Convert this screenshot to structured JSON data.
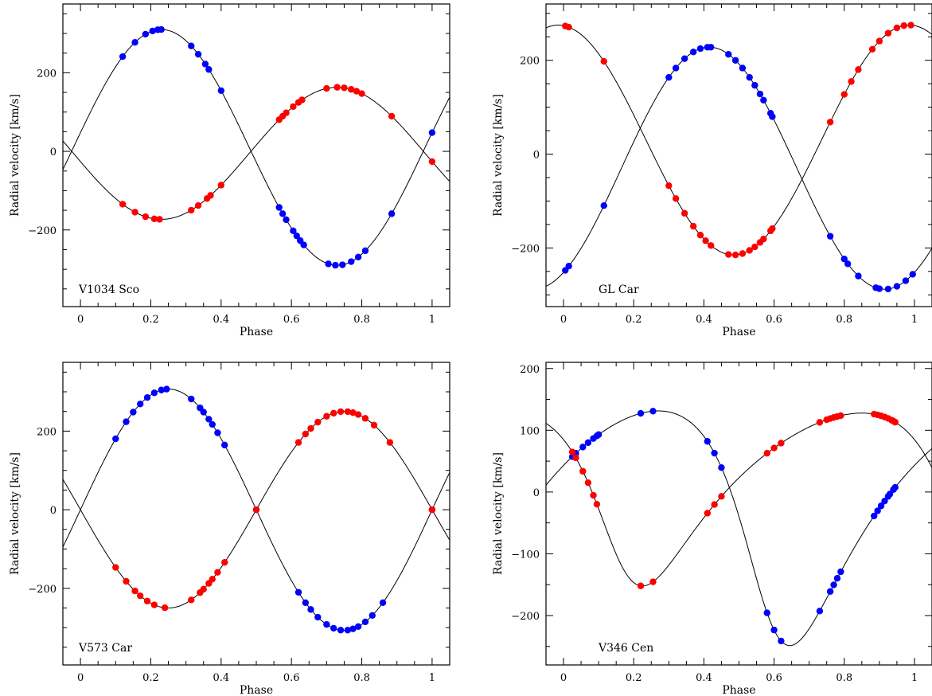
{
  "chart_data": [
    {
      "type": "scatter",
      "title": "V1034 Sco",
      "xlabel": "Phase",
      "ylabel": "Radial velocity [km/s]",
      "xlim": [
        -0.05,
        1.05
      ],
      "ylim": [
        -395,
        375
      ],
      "xticks": [
        "0",
        "0.2",
        "0.4",
        "0.6",
        "0.8",
        "1"
      ],
      "yticks": [
        "−200",
        "0",
        "200"
      ],
      "ytick_values": [
        -200,
        0,
        200
      ],
      "series": [
        {
          "color": "#0000ff",
          "model": {
            "gamma": 10,
            "K": 300,
            "e": 0,
            "omega": 0,
            "peak_phase": 0.23
          },
          "phases": [
            0.12,
            0.155,
            0.185,
            0.205,
            0.22,
            0.23,
            0.315,
            0.335,
            0.355,
            0.365,
            0.4,
            0.565,
            0.575,
            0.585,
            0.605,
            0.615,
            0.625,
            0.635,
            0.705,
            0.725,
            0.745,
            0.77,
            0.79,
            0.81,
            0.885,
            1.0
          ]
        },
        {
          "color": "#ff0000",
          "model": {
            "gamma": -5,
            "K": 168,
            "e": 0,
            "omega": 0,
            "peak_phase": 0.73
          },
          "phases": [
            0.12,
            0.155,
            0.185,
            0.21,
            0.225,
            0.315,
            0.335,
            0.36,
            0.37,
            0.4,
            0.565,
            0.575,
            0.585,
            0.605,
            0.62,
            0.63,
            0.7,
            0.73,
            0.75,
            0.77,
            0.785,
            0.8,
            0.885,
            1.0
          ]
        }
      ]
    },
    {
      "type": "scatter",
      "title": "GL Car",
      "xlabel": "Phase",
      "ylabel": "Radial velocity [km/s]",
      "xlim": [
        -0.05,
        1.05
      ],
      "ylim": [
        -325,
        320
      ],
      "xticks": [
        "0",
        "0.2",
        "0.4",
        "0.6",
        "0.8",
        "1"
      ],
      "yticks": [
        "−200",
        "0",
        "200"
      ],
      "ytick_values": [
        -200,
        0,
        200
      ],
      "series": [
        {
          "color": "#0000ff",
          "model": {
            "gamma": -30,
            "K": 258,
            "e": 0,
            "omega": 0,
            "peak_phase": 0.415
          },
          "phases": [
            0.005,
            0.015,
            0.115,
            0.3,
            0.32,
            0.345,
            0.37,
            0.39,
            0.41,
            0.42,
            0.47,
            0.49,
            0.51,
            0.53,
            0.545,
            0.56,
            0.57,
            0.59,
            0.595,
            0.76,
            0.8,
            0.81,
            0.84,
            0.89,
            0.9,
            0.925,
            0.95,
            0.975,
            0.995
          ]
        },
        {
          "color": "#ff0000",
          "model": {
            "gamma": 30,
            "K": 245,
            "e": 0,
            "omega": 0,
            "peak_phase": 0.985
          },
          "phases": [
            0.005,
            0.015,
            0.115,
            0.3,
            0.32,
            0.345,
            0.37,
            0.39,
            0.405,
            0.42,
            0.47,
            0.49,
            0.51,
            0.53,
            0.545,
            0.56,
            0.57,
            0.59,
            0.595,
            0.76,
            0.8,
            0.82,
            0.84,
            0.88,
            0.9,
            0.925,
            0.95,
            0.97,
            0.99
          ]
        }
      ]
    },
    {
      "type": "scatter",
      "title": "V573 Car",
      "xlabel": "Phase",
      "ylabel": "Radial velocity [km/s]",
      "xlim": [
        -0.05,
        1.05
      ],
      "ylim": [
        -395,
        375
      ],
      "xticks": [
        "0",
        "0.2",
        "0.4",
        "0.6",
        "0.8",
        "1"
      ],
      "yticks": [
        "−200",
        "0",
        "200"
      ],
      "ytick_values": [
        -200,
        0,
        200
      ],
      "series": [
        {
          "color": "#0000ff",
          "model": {
            "gamma": 0,
            "K": 307,
            "e": 0,
            "omega": 0,
            "peak_phase": 0.25
          },
          "phases": [
            0.1,
            0.13,
            0.15,
            0.17,
            0.19,
            0.21,
            0.23,
            0.245,
            0.315,
            0.34,
            0.35,
            0.365,
            0.375,
            0.39,
            0.41,
            0.5,
            0.62,
            0.64,
            0.655,
            0.675,
            0.7,
            0.72,
            0.74,
            0.76,
            0.775,
            0.79,
            0.81,
            0.83,
            0.86,
            1.0
          ]
        },
        {
          "color": "#ff0000",
          "model": {
            "gamma": 0,
            "K": 250,
            "e": 0,
            "omega": 0,
            "peak_phase": 0.75
          },
          "phases": [
            0.1,
            0.13,
            0.155,
            0.17,
            0.19,
            0.21,
            0.24,
            0.315,
            0.34,
            0.35,
            0.365,
            0.375,
            0.39,
            0.41,
            0.5,
            0.62,
            0.64,
            0.655,
            0.675,
            0.7,
            0.72,
            0.74,
            0.76,
            0.775,
            0.79,
            0.81,
            0.835,
            0.88,
            1.0
          ]
        }
      ]
    },
    {
      "type": "scatter",
      "title": "V346 Cen",
      "xlabel": "Phase",
      "ylabel": "Radial velocity [km/s]",
      "xlim": [
        -0.05,
        1.05
      ],
      "ylim": [
        -280,
        210
      ],
      "xticks": [
        "0",
        "0.2",
        "0.4",
        "0.6",
        "0.8",
        "1"
      ],
      "yticks": [
        "−200",
        "−100",
        "0",
        "100",
        "200"
      ],
      "ytick_values": [
        -200,
        -100,
        0,
        100,
        200
      ],
      "series": [
        {
          "color": "#0000ff",
          "model": {
            "gamma": -15,
            "K": 190,
            "e": 0.3,
            "omega": 140,
            "peak_phase": 0.27
          },
          "phases": [
            0.025,
            0.035,
            0.055,
            0.07,
            0.085,
            0.095,
            0.1,
            0.22,
            0.255,
            0.41,
            0.43,
            0.45,
            0.58,
            0.6,
            0.62,
            0.73,
            0.76,
            0.77,
            0.78,
            0.79,
            0.885,
            0.895,
            0.905,
            0.915,
            0.925,
            0.93,
            0.94,
            0.945
          ]
        },
        {
          "color": "#ff0000",
          "model": {
            "gamma": 20,
            "K": 140,
            "e": 0.3,
            "omega": 140,
            "peak_phase": 0.85
          },
          "phases": [
            0.025,
            0.035,
            0.055,
            0.07,
            0.085,
            0.095,
            0.22,
            0.255,
            0.41,
            0.43,
            0.45,
            0.58,
            0.6,
            0.62,
            0.73,
            0.75,
            0.76,
            0.77,
            0.78,
            0.79,
            0.885,
            0.895,
            0.905,
            0.915,
            0.925,
            0.935,
            0.94,
            0.945
          ]
        }
      ]
    }
  ]
}
